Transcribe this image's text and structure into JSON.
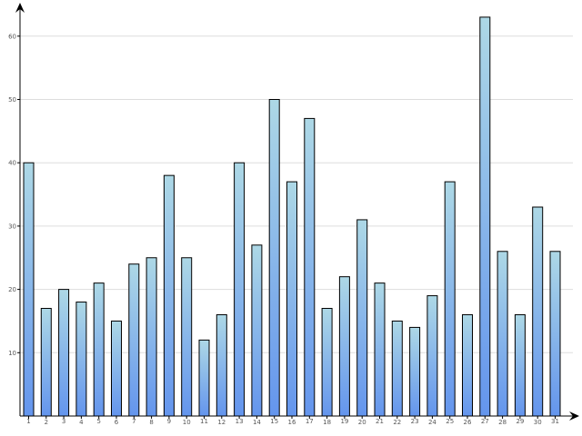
{
  "chart_data": {
    "type": "bar",
    "title": "",
    "xlabel": "",
    "ylabel": "",
    "categories": [
      "1",
      "2",
      "3",
      "4",
      "5",
      "6",
      "7",
      "8",
      "9",
      "10",
      "11",
      "12",
      "13",
      "14",
      "15",
      "16",
      "17",
      "18",
      "19",
      "20",
      "21",
      "22",
      "23",
      "24",
      "25",
      "26",
      "27",
      "28",
      "29",
      "30",
      "31"
    ],
    "values": [
      40,
      17,
      20,
      18,
      21,
      15,
      24,
      25,
      38,
      25,
      12,
      16,
      40,
      27,
      50,
      37,
      47,
      17,
      22,
      31,
      21,
      15,
      14,
      19,
      37,
      16,
      63,
      26,
      16,
      33,
      26
    ],
    "yticks": [
      "10",
      "20",
      "30",
      "40",
      "50",
      "60"
    ],
    "ylim": [
      0,
      65
    ],
    "grid": true,
    "legend": "none",
    "colors": {
      "bar_top": "#add8e6",
      "bar_bottom": "#6495ed",
      "grid": "#dddddd",
      "axis": "#000000"
    }
  }
}
